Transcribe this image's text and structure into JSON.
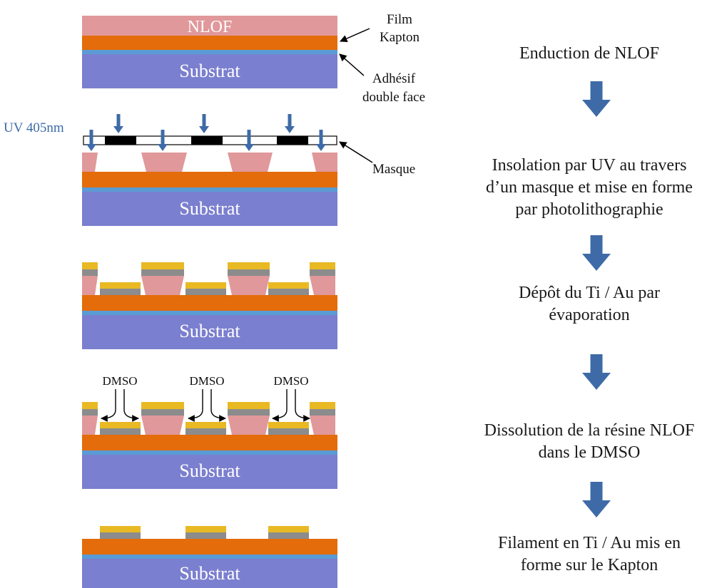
{
  "colors": {
    "substrate": "#7b7fcf",
    "adhesive": "#5b9bd5",
    "kapton": "#e46c0a",
    "nlof": "#e0989a",
    "gold": "#e8b923",
    "titanium": "#8c8c8c",
    "mask_opaque": "#000000",
    "arrow_blue": "#3e6ba7",
    "uv_label": "#3e6ba7"
  },
  "labels": {
    "nlof": "NLOF",
    "substrat": "Substrat",
    "film_kapton": [
      "Film",
      "Kapton"
    ],
    "adhesif": [
      "Adhésif",
      "double face"
    ],
    "uv": "UV 405nm",
    "masque": "Masque",
    "dmso": "DMSO"
  },
  "steps": [
    {
      "lines": [
        "Enduction de NLOF"
      ]
    },
    {
      "lines": [
        "Insolation par UV au travers",
        "d’un masque et mise en forme",
        "par photolithographie"
      ]
    },
    {
      "lines": [
        "Dépôt du Ti / Au par",
        "évaporation"
      ]
    },
    {
      "lines": [
        "Dissolution de la résine NLOF",
        "dans le DMSO"
      ]
    },
    {
      "lines": [
        "Filament en Ti / Au mis en",
        "forme sur le Kapton"
      ]
    }
  ],
  "icons": {
    "flow_arrow": "down-arrow-icon"
  }
}
